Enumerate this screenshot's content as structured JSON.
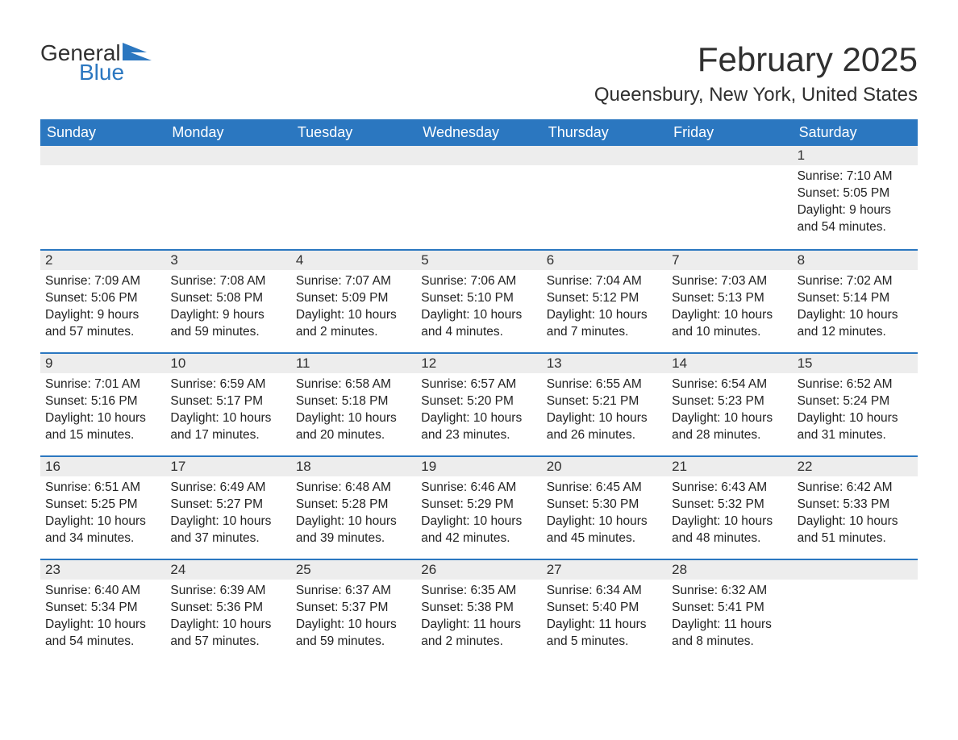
{
  "logo": {
    "general": "General",
    "blue": "Blue"
  },
  "title": "February 2025",
  "location": "Queensbury, New York, United States",
  "colors": {
    "header_bg": "#2b77c0",
    "header_text": "#ffffff",
    "daynum_bg": "#ededed",
    "text": "#222222",
    "week_border": "#2b77c0"
  },
  "day_headers": [
    "Sunday",
    "Monday",
    "Tuesday",
    "Wednesday",
    "Thursday",
    "Friday",
    "Saturday"
  ],
  "weeks": [
    [
      {
        "n": "",
        "sunrise": "",
        "sunset": "",
        "daylight": ""
      },
      {
        "n": "",
        "sunrise": "",
        "sunset": "",
        "daylight": ""
      },
      {
        "n": "",
        "sunrise": "",
        "sunset": "",
        "daylight": ""
      },
      {
        "n": "",
        "sunrise": "",
        "sunset": "",
        "daylight": ""
      },
      {
        "n": "",
        "sunrise": "",
        "sunset": "",
        "daylight": ""
      },
      {
        "n": "",
        "sunrise": "",
        "sunset": "",
        "daylight": ""
      },
      {
        "n": "1",
        "sunrise": "Sunrise: 7:10 AM",
        "sunset": "Sunset: 5:05 PM",
        "daylight": "Daylight: 9 hours and 54 minutes."
      }
    ],
    [
      {
        "n": "2",
        "sunrise": "Sunrise: 7:09 AM",
        "sunset": "Sunset: 5:06 PM",
        "daylight": "Daylight: 9 hours and 57 minutes."
      },
      {
        "n": "3",
        "sunrise": "Sunrise: 7:08 AM",
        "sunset": "Sunset: 5:08 PM",
        "daylight": "Daylight: 9 hours and 59 minutes."
      },
      {
        "n": "4",
        "sunrise": "Sunrise: 7:07 AM",
        "sunset": "Sunset: 5:09 PM",
        "daylight": "Daylight: 10 hours and 2 minutes."
      },
      {
        "n": "5",
        "sunrise": "Sunrise: 7:06 AM",
        "sunset": "Sunset: 5:10 PM",
        "daylight": "Daylight: 10 hours and 4 minutes."
      },
      {
        "n": "6",
        "sunrise": "Sunrise: 7:04 AM",
        "sunset": "Sunset: 5:12 PM",
        "daylight": "Daylight: 10 hours and 7 minutes."
      },
      {
        "n": "7",
        "sunrise": "Sunrise: 7:03 AM",
        "sunset": "Sunset: 5:13 PM",
        "daylight": "Daylight: 10 hours and 10 minutes."
      },
      {
        "n": "8",
        "sunrise": "Sunrise: 7:02 AM",
        "sunset": "Sunset: 5:14 PM",
        "daylight": "Daylight: 10 hours and 12 minutes."
      }
    ],
    [
      {
        "n": "9",
        "sunrise": "Sunrise: 7:01 AM",
        "sunset": "Sunset: 5:16 PM",
        "daylight": "Daylight: 10 hours and 15 minutes."
      },
      {
        "n": "10",
        "sunrise": "Sunrise: 6:59 AM",
        "sunset": "Sunset: 5:17 PM",
        "daylight": "Daylight: 10 hours and 17 minutes."
      },
      {
        "n": "11",
        "sunrise": "Sunrise: 6:58 AM",
        "sunset": "Sunset: 5:18 PM",
        "daylight": "Daylight: 10 hours and 20 minutes."
      },
      {
        "n": "12",
        "sunrise": "Sunrise: 6:57 AM",
        "sunset": "Sunset: 5:20 PM",
        "daylight": "Daylight: 10 hours and 23 minutes."
      },
      {
        "n": "13",
        "sunrise": "Sunrise: 6:55 AM",
        "sunset": "Sunset: 5:21 PM",
        "daylight": "Daylight: 10 hours and 26 minutes."
      },
      {
        "n": "14",
        "sunrise": "Sunrise: 6:54 AM",
        "sunset": "Sunset: 5:23 PM",
        "daylight": "Daylight: 10 hours and 28 minutes."
      },
      {
        "n": "15",
        "sunrise": "Sunrise: 6:52 AM",
        "sunset": "Sunset: 5:24 PM",
        "daylight": "Daylight: 10 hours and 31 minutes."
      }
    ],
    [
      {
        "n": "16",
        "sunrise": "Sunrise: 6:51 AM",
        "sunset": "Sunset: 5:25 PM",
        "daylight": "Daylight: 10 hours and 34 minutes."
      },
      {
        "n": "17",
        "sunrise": "Sunrise: 6:49 AM",
        "sunset": "Sunset: 5:27 PM",
        "daylight": "Daylight: 10 hours and 37 minutes."
      },
      {
        "n": "18",
        "sunrise": "Sunrise: 6:48 AM",
        "sunset": "Sunset: 5:28 PM",
        "daylight": "Daylight: 10 hours and 39 minutes."
      },
      {
        "n": "19",
        "sunrise": "Sunrise: 6:46 AM",
        "sunset": "Sunset: 5:29 PM",
        "daylight": "Daylight: 10 hours and 42 minutes."
      },
      {
        "n": "20",
        "sunrise": "Sunrise: 6:45 AM",
        "sunset": "Sunset: 5:30 PM",
        "daylight": "Daylight: 10 hours and 45 minutes."
      },
      {
        "n": "21",
        "sunrise": "Sunrise: 6:43 AM",
        "sunset": "Sunset: 5:32 PM",
        "daylight": "Daylight: 10 hours and 48 minutes."
      },
      {
        "n": "22",
        "sunrise": "Sunrise: 6:42 AM",
        "sunset": "Sunset: 5:33 PM",
        "daylight": "Daylight: 10 hours and 51 minutes."
      }
    ],
    [
      {
        "n": "23",
        "sunrise": "Sunrise: 6:40 AM",
        "sunset": "Sunset: 5:34 PM",
        "daylight": "Daylight: 10 hours and 54 minutes."
      },
      {
        "n": "24",
        "sunrise": "Sunrise: 6:39 AM",
        "sunset": "Sunset: 5:36 PM",
        "daylight": "Daylight: 10 hours and 57 minutes."
      },
      {
        "n": "25",
        "sunrise": "Sunrise: 6:37 AM",
        "sunset": "Sunset: 5:37 PM",
        "daylight": "Daylight: 10 hours and 59 minutes."
      },
      {
        "n": "26",
        "sunrise": "Sunrise: 6:35 AM",
        "sunset": "Sunset: 5:38 PM",
        "daylight": "Daylight: 11 hours and 2 minutes."
      },
      {
        "n": "27",
        "sunrise": "Sunrise: 6:34 AM",
        "sunset": "Sunset: 5:40 PM",
        "daylight": "Daylight: 11 hours and 5 minutes."
      },
      {
        "n": "28",
        "sunrise": "Sunrise: 6:32 AM",
        "sunset": "Sunset: 5:41 PM",
        "daylight": "Daylight: 11 hours and 8 minutes."
      },
      {
        "n": "",
        "sunrise": "",
        "sunset": "",
        "daylight": ""
      }
    ]
  ]
}
